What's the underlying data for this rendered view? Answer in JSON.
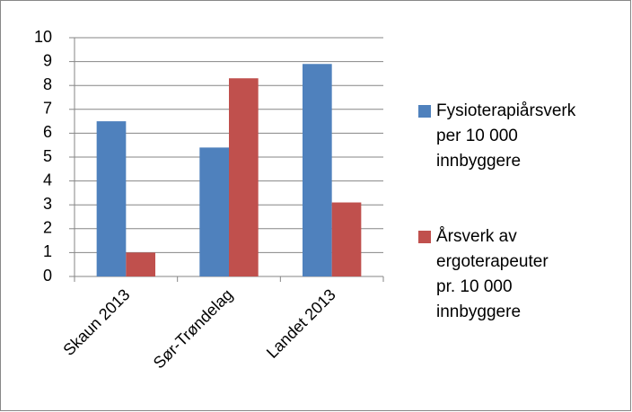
{
  "chart_data": {
    "type": "bar",
    "categories": [
      "Skaun 2013",
      "Sør-Trøndelag",
      "Landet 2013"
    ],
    "series": [
      {
        "name": "Fysioterapiårsverk per 10 000 innbyggere",
        "color": "#4f81bd",
        "values": [
          6.5,
          5.4,
          8.9
        ]
      },
      {
        "name": "Årsverk av ergoterapeuter pr. 10 000 innbyggere",
        "color": "#c0504d",
        "values": [
          1.0,
          8.3,
          3.1
        ]
      }
    ],
    "ylim": [
      0,
      10
    ],
    "yticks": [
      0,
      1,
      2,
      3,
      4,
      5,
      6,
      7,
      8,
      9,
      10
    ],
    "grid": true,
    "legend": "right"
  }
}
